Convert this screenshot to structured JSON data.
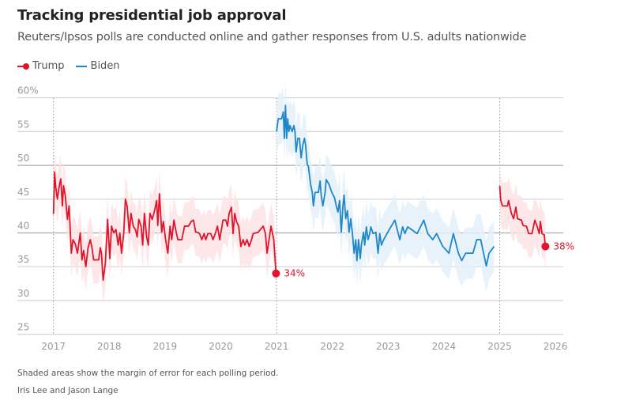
{
  "title": "Tracking presidential job approval",
  "subtitle": "Reuters/Ipsos polls are conducted online and gather responses from U.S. adults nationwide",
  "footnote": "Shaded areas show the margin of error for each polling period.",
  "byline": "Iris Lee and Jason Lange",
  "colors": {
    "trump": "#e0142b",
    "biden": "#1f86c8",
    "trump_band": "#fde3e5",
    "biden_band": "#e3f0f9",
    "grid": "#cfcfcf"
  },
  "chart_data": {
    "type": "line",
    "legend": [
      {
        "name": "Trump",
        "color": "#e0142b",
        "marker": "dot"
      },
      {
        "name": "Biden",
        "color": "#1f86c8"
      }
    ],
    "legend_position": "top-left",
    "xlim": [
      2017,
      2026
    ],
    "ylim": [
      25,
      60
    ],
    "x_ticks": [
      "2017",
      "2018",
      "2019",
      "2020",
      "2021",
      "2022",
      "2023",
      "2024",
      "2025",
      "2026"
    ],
    "y_ticks": [
      "25",
      "30",
      "35",
      "40",
      "45",
      "50",
      "55",
      "60%"
    ],
    "y_tick_values": [
      25,
      30,
      35,
      40,
      45,
      50,
      55,
      60
    ],
    "grid": true,
    "term_markers": [
      2017,
      2021,
      2025
    ],
    "series": [
      {
        "name": "Trump",
        "color": "#e0142b",
        "margin_of_error": 3.5,
        "end_label": "34%",
        "points": [
          [
            2017.0,
            42.8
          ],
          [
            2017.02,
            49
          ],
          [
            2017.04,
            46.8
          ],
          [
            2017.07,
            45
          ],
          [
            2017.1,
            46.8
          ],
          [
            2017.13,
            48
          ],
          [
            2017.16,
            44
          ],
          [
            2017.18,
            47
          ],
          [
            2017.21,
            45.6
          ],
          [
            2017.25,
            42
          ],
          [
            2017.28,
            44
          ],
          [
            2017.32,
            37
          ],
          [
            2017.35,
            39
          ],
          [
            2017.39,
            38.4
          ],
          [
            2017.43,
            37
          ],
          [
            2017.48,
            40
          ],
          [
            2017.51,
            36
          ],
          [
            2017.54,
            37.4
          ],
          [
            2017.58,
            35
          ],
          [
            2017.62,
            37.8
          ],
          [
            2017.66,
            39
          ],
          [
            2017.69,
            37.8
          ],
          [
            2017.72,
            36
          ],
          [
            2017.81,
            36
          ],
          [
            2017.84,
            37.8
          ],
          [
            2017.86,
            37
          ],
          [
            2017.89,
            33
          ],
          [
            2017.93,
            35.5
          ],
          [
            2017.97,
            42
          ],
          [
            2018.01,
            36.2
          ],
          [
            2018.04,
            41
          ],
          [
            2018.08,
            40
          ],
          [
            2018.12,
            40.5
          ],
          [
            2018.16,
            38.2
          ],
          [
            2018.19,
            40
          ],
          [
            2018.22,
            37
          ],
          [
            2018.26,
            40
          ],
          [
            2018.29,
            45
          ],
          [
            2018.32,
            44
          ],
          [
            2018.36,
            40
          ],
          [
            2018.39,
            42.9
          ],
          [
            2018.43,
            41
          ],
          [
            2018.47,
            40.5
          ],
          [
            2018.5,
            39.4
          ],
          [
            2018.53,
            42
          ],
          [
            2018.57,
            41
          ],
          [
            2018.6,
            38.2
          ],
          [
            2018.63,
            42.9
          ],
          [
            2018.67,
            39.4
          ],
          [
            2018.7,
            38.2
          ],
          [
            2018.73,
            42.9
          ],
          [
            2018.77,
            42
          ],
          [
            2018.81,
            43.2
          ],
          [
            2018.85,
            44.8
          ],
          [
            2018.87,
            41.1
          ],
          [
            2018.9,
            45.8
          ],
          [
            2018.94,
            40.1
          ],
          [
            2018.97,
            41.7
          ],
          [
            2019.01,
            39
          ],
          [
            2019.05,
            37
          ],
          [
            2019.09,
            41
          ],
          [
            2019.12,
            39
          ],
          [
            2019.16,
            41.9
          ],
          [
            2019.2,
            40.1
          ],
          [
            2019.23,
            39
          ],
          [
            2019.3,
            39
          ],
          [
            2019.35,
            41
          ],
          [
            2019.42,
            41
          ],
          [
            2019.47,
            41.7
          ],
          [
            2019.51,
            41.9
          ],
          [
            2019.55,
            40.1
          ],
          [
            2019.58,
            40.1
          ],
          [
            2019.62,
            39.9
          ],
          [
            2019.66,
            39
          ],
          [
            2019.7,
            39.9
          ],
          [
            2019.73,
            39
          ],
          [
            2019.77,
            39.9
          ],
          [
            2019.82,
            39.9
          ],
          [
            2019.86,
            39
          ],
          [
            2019.9,
            39.9
          ],
          [
            2019.94,
            41
          ],
          [
            2019.98,
            39
          ],
          [
            2020.04,
            41.9
          ],
          [
            2020.09,
            41.9
          ],
          [
            2020.12,
            41
          ],
          [
            2020.15,
            42.9
          ],
          [
            2020.19,
            43.8
          ],
          [
            2020.22,
            39.9
          ],
          [
            2020.25,
            42.9
          ],
          [
            2020.28,
            41.7
          ],
          [
            2020.32,
            41
          ],
          [
            2020.36,
            38
          ],
          [
            2020.4,
            39
          ],
          [
            2020.43,
            38.2
          ],
          [
            2020.47,
            39
          ],
          [
            2020.51,
            38
          ],
          [
            2020.55,
            39
          ],
          [
            2020.58,
            39.9
          ],
          [
            2020.67,
            40.1
          ],
          [
            2020.76,
            41
          ],
          [
            2020.8,
            39.9
          ],
          [
            2020.83,
            37
          ],
          [
            2020.9,
            41
          ],
          [
            2020.95,
            39
          ],
          [
            2020.99,
            34
          ]
        ]
      },
      {
        "name": "Biden",
        "color": "#1f86c8",
        "margin_of_error": 3.8,
        "points": [
          [
            2021.0,
            55
          ],
          [
            2021.03,
            56.9
          ],
          [
            2021.09,
            56.9
          ],
          [
            2021.12,
            57.9
          ],
          [
            2021.14,
            54
          ],
          [
            2021.16,
            58.9
          ],
          [
            2021.18,
            54
          ],
          [
            2021.2,
            56.9
          ],
          [
            2021.22,
            55
          ],
          [
            2021.24,
            55.9
          ],
          [
            2021.28,
            55
          ],
          [
            2021.31,
            55.9
          ],
          [
            2021.33,
            55
          ],
          [
            2021.35,
            52
          ],
          [
            2021.38,
            54
          ],
          [
            2021.41,
            54
          ],
          [
            2021.44,
            51.1
          ],
          [
            2021.47,
            53
          ],
          [
            2021.5,
            54
          ],
          [
            2021.52,
            53
          ],
          [
            2021.55,
            50.1
          ],
          [
            2021.57,
            49.9
          ],
          [
            2021.61,
            47.2
          ],
          [
            2021.64,
            46
          ],
          [
            2021.66,
            44
          ],
          [
            2021.69,
            46
          ],
          [
            2021.75,
            46
          ],
          [
            2021.78,
            47.7
          ],
          [
            2021.8,
            45.6
          ],
          [
            2021.83,
            44
          ],
          [
            2021.87,
            46
          ],
          [
            2021.89,
            47.9
          ],
          [
            2021.94,
            47.2
          ],
          [
            2021.99,
            46
          ],
          [
            2022.04,
            45.2
          ],
          [
            2022.07,
            44
          ],
          [
            2022.1,
            43.1
          ],
          [
            2022.13,
            44.8
          ],
          [
            2022.16,
            40.1
          ],
          [
            2022.19,
            44
          ],
          [
            2022.21,
            45.6
          ],
          [
            2022.24,
            42.1
          ],
          [
            2022.27,
            43.3
          ],
          [
            2022.3,
            40.1
          ],
          [
            2022.33,
            42.1
          ],
          [
            2022.36,
            39.9
          ],
          [
            2022.39,
            37
          ],
          [
            2022.42,
            39
          ],
          [
            2022.44,
            35.9
          ],
          [
            2022.47,
            39
          ],
          [
            2022.5,
            36.2
          ],
          [
            2022.52,
            38.2
          ],
          [
            2022.56,
            40.1
          ],
          [
            2022.58,
            38.2
          ],
          [
            2022.61,
            40.9
          ],
          [
            2022.64,
            39
          ],
          [
            2022.67,
            39.9
          ],
          [
            2022.69,
            40.9
          ],
          [
            2022.73,
            39.9
          ],
          [
            2022.78,
            40.1
          ],
          [
            2022.82,
            37
          ],
          [
            2022.85,
            39.9
          ],
          [
            2022.88,
            38.2
          ],
          [
            2022.92,
            39
          ],
          [
            2022.98,
            39.9
          ],
          [
            2023.12,
            41.9
          ],
          [
            2023.21,
            39
          ],
          [
            2023.26,
            40.9
          ],
          [
            2023.3,
            39.9
          ],
          [
            2023.35,
            40.9
          ],
          [
            2023.42,
            40.5
          ],
          [
            2023.52,
            39.9
          ],
          [
            2023.64,
            41.9
          ],
          [
            2023.71,
            39.9
          ],
          [
            2023.8,
            39
          ],
          [
            2023.87,
            39.9
          ],
          [
            2023.98,
            38
          ],
          [
            2024.09,
            37
          ],
          [
            2024.17,
            39.9
          ],
          [
            2024.26,
            37
          ],
          [
            2024.32,
            35.9
          ],
          [
            2024.39,
            37
          ],
          [
            2024.52,
            37
          ],
          [
            2024.59,
            39
          ],
          [
            2024.66,
            39
          ],
          [
            2024.76,
            35.1
          ],
          [
            2024.81,
            37
          ],
          [
            2024.9,
            38
          ]
        ]
      },
      {
        "name": "Trump",
        "color": "#e0142b",
        "margin_of_error": 3.5,
        "end_label": "38%",
        "points": [
          [
            2025.0,
            47
          ],
          [
            2025.02,
            44.8
          ],
          [
            2025.05,
            44
          ],
          [
            2025.14,
            44
          ],
          [
            2025.16,
            44.8
          ],
          [
            2025.21,
            42.9
          ],
          [
            2025.25,
            42.1
          ],
          [
            2025.29,
            43.8
          ],
          [
            2025.32,
            42.1
          ],
          [
            2025.39,
            41.9
          ],
          [
            2025.42,
            41.1
          ],
          [
            2025.48,
            41
          ],
          [
            2025.52,
            39.9
          ],
          [
            2025.58,
            39.9
          ],
          [
            2025.63,
            41.9
          ],
          [
            2025.67,
            41
          ],
          [
            2025.71,
            39.9
          ],
          [
            2025.73,
            41.7
          ],
          [
            2025.76,
            39.9
          ],
          [
            2025.8,
            39.7
          ],
          [
            2025.82,
            38
          ]
        ]
      }
    ]
  }
}
